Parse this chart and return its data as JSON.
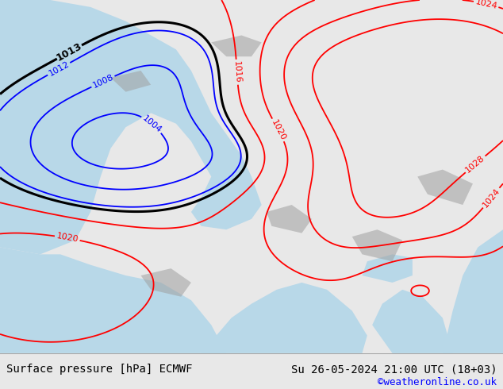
{
  "title_left": "Surface pressure [hPa] ECMWF",
  "title_right": "Su 26-05-2024 21:00 UTC (18+03)",
  "credit": "©weatheronline.co.uk",
  "land_color": "#c8e6a0",
  "sea_color": "#b8d8e8",
  "map_bg": "#d0e8c0",
  "gray_color": "#a0a0a0",
  "footer_bg": "#e8e8e8",
  "footer_fontsize": 10,
  "credit_fontsize": 9
}
